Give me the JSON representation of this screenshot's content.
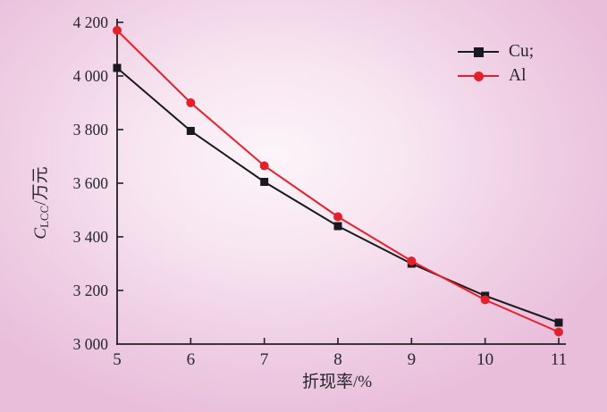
{
  "page": {
    "background_edge_color": "#e9bedb",
    "background_center_color": "#fcf5f9",
    "text_color": "#26262e",
    "axis_color": "#202025"
  },
  "chart_data": {
    "type": "line",
    "title": "",
    "xlabel": "折现率/%",
    "ylabel": {
      "full": "C_LCC/万元",
      "symbol": "C",
      "subscript": "LCC",
      "unit": "/万元"
    },
    "x": [
      5,
      6,
      7,
      8,
      9,
      10,
      11
    ],
    "x_tick_labels": [
      "5",
      "6",
      "7",
      "8",
      "9",
      "10",
      "11"
    ],
    "xlim": [
      5,
      11
    ],
    "ylim": [
      3000,
      4200
    ],
    "y_ticks": [
      3000,
      3200,
      3400,
      3600,
      3800,
      4000,
      4200
    ],
    "y_tick_labels": [
      "3 000",
      "3 200",
      "3 400",
      "3 600",
      "3 800",
      "4 000",
      "4 200"
    ],
    "grid": false,
    "legend_position": "upper right",
    "series": [
      {
        "name": "Cu;",
        "marker": "square",
        "color": "#1a1a1e",
        "values": [
          4030,
          3795,
          3605,
          3440,
          3300,
          3180,
          3080
        ]
      },
      {
        "name": "Al",
        "marker": "circle",
        "color": "#e6202b",
        "values": [
          4170,
          3900,
          3665,
          3475,
          3310,
          3165,
          3045
        ]
      }
    ]
  }
}
